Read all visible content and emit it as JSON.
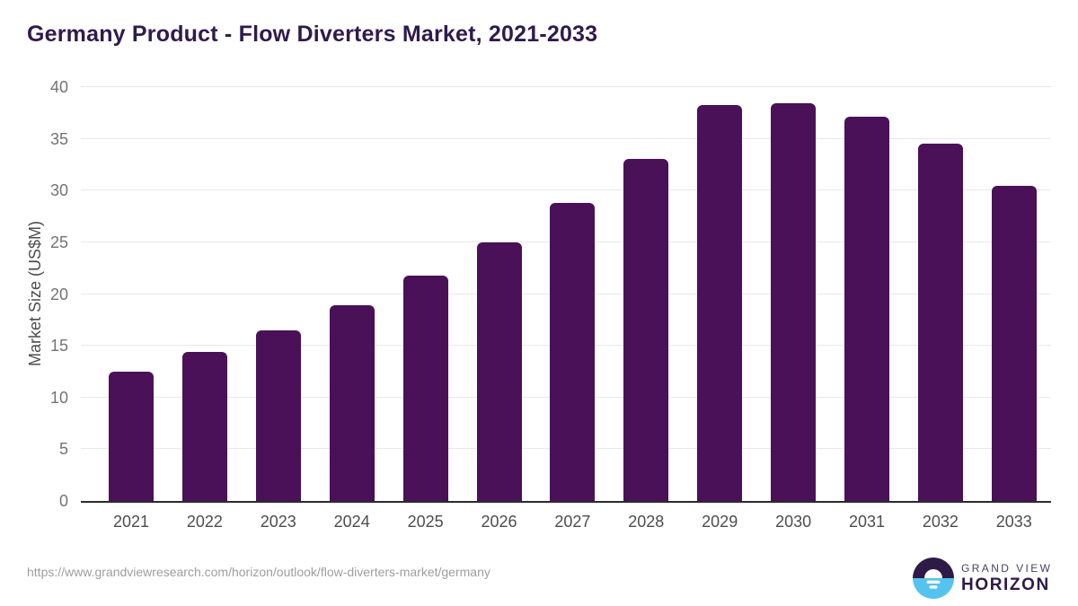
{
  "title": "Germany Product - Flow Diverters Market, 2021-2033",
  "chart_data": {
    "type": "bar",
    "title": "Germany Product - Flow Diverters Market, 2021-2033",
    "categories": [
      "2021",
      "2022",
      "2023",
      "2024",
      "2025",
      "2026",
      "2027",
      "2028",
      "2029",
      "2030",
      "2031",
      "2032",
      "2033"
    ],
    "values": [
      12.5,
      14.4,
      16.5,
      18.9,
      21.8,
      25.0,
      28.8,
      33.1,
      38.3,
      38.4,
      37.1,
      34.5,
      30.5
    ],
    "xlabel": "",
    "ylabel": "Market Size (US$M)",
    "ylim": [
      0,
      40
    ],
    "yticks": [
      0,
      5,
      10,
      15,
      20,
      25,
      30,
      35,
      40
    ],
    "grid": "horizontal",
    "legend": "none",
    "bar_color": "#4a1158"
  },
  "footer": {
    "source_url": "https://www.grandviewresearch.com/horizon/outlook/flow-diverters-market/germany",
    "brand": {
      "line1": "GRAND VIEW",
      "line2": "HORIZON"
    }
  },
  "colors": {
    "title_text": "#301a4d",
    "bar": "#4a1158",
    "gridline": "#e8e8e8",
    "axis_line": "#2b2b2b",
    "y_tick_text": "#737373",
    "x_tick_text": "#4d4d4d",
    "url_text": "#9e9e9e",
    "logo_purple": "#2e1a47",
    "logo_blue": "#55c3f0"
  },
  "icons": {
    "brand_mark": "sunrise-horizon-icon"
  }
}
